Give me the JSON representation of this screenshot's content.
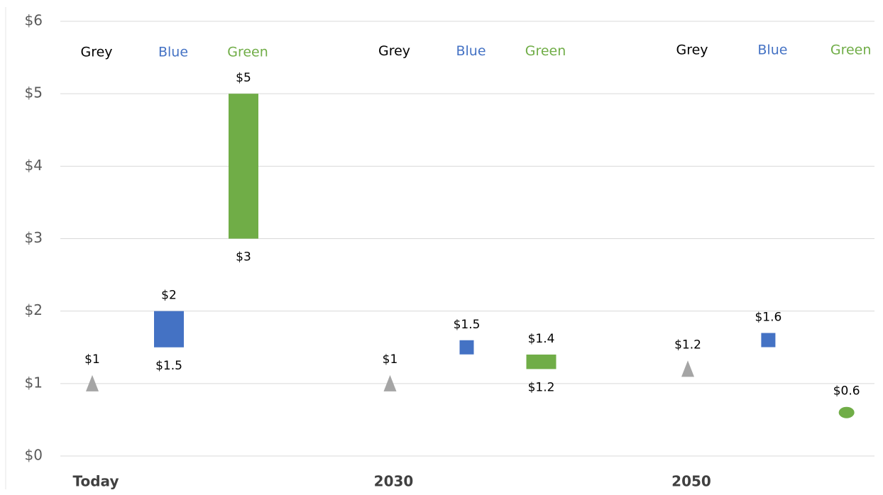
{
  "chart_data": {
    "type": "range",
    "categories": [
      "Today",
      "2030",
      "2050"
    ],
    "series": [
      {
        "name": "Grey",
        "color": "#a5a5a5",
        "label_color": "#000000",
        "marker": "triangle",
        "low": [
          null,
          null,
          null
        ],
        "low_labels": [
          null,
          null,
          null
        ],
        "values": [
          1,
          1,
          1.2
        ],
        "value_labels": [
          "$1",
          "$1",
          "$1.2"
        ]
      },
      {
        "name": "Blue",
        "color": "#4472c4",
        "label_color": "#4472c4",
        "marker": "square",
        "low": [
          1.5,
          null,
          null
        ],
        "low_labels": [
          "$1.5",
          null,
          null
        ],
        "values": [
          2,
          1.5,
          1.6
        ],
        "value_labels": [
          "$2",
          "$1.5",
          "$1.6"
        ]
      },
      {
        "name": "Green",
        "color": "#70ad47",
        "label_color": "#70ad47",
        "marker": "circle",
        "low": [
          3,
          1.2,
          null
        ],
        "low_labels": [
          "$3",
          "$1.2",
          null
        ],
        "values": [
          5,
          1.4,
          0.6
        ],
        "value_labels": [
          "$5",
          "$1.4",
          "$0.6"
        ]
      }
    ],
    "ylim": [
      0,
      6
    ],
    "yticks": [
      {
        "value": 0,
        "label": "$0"
      },
      {
        "value": 1,
        "label": "$1"
      },
      {
        "value": 2,
        "label": "$2"
      },
      {
        "value": 3,
        "label": "$3"
      },
      {
        "value": 4,
        "label": "$4"
      },
      {
        "value": 5,
        "label": "$5"
      },
      {
        "value": 6,
        "label": "$6"
      }
    ],
    "grid": true
  }
}
